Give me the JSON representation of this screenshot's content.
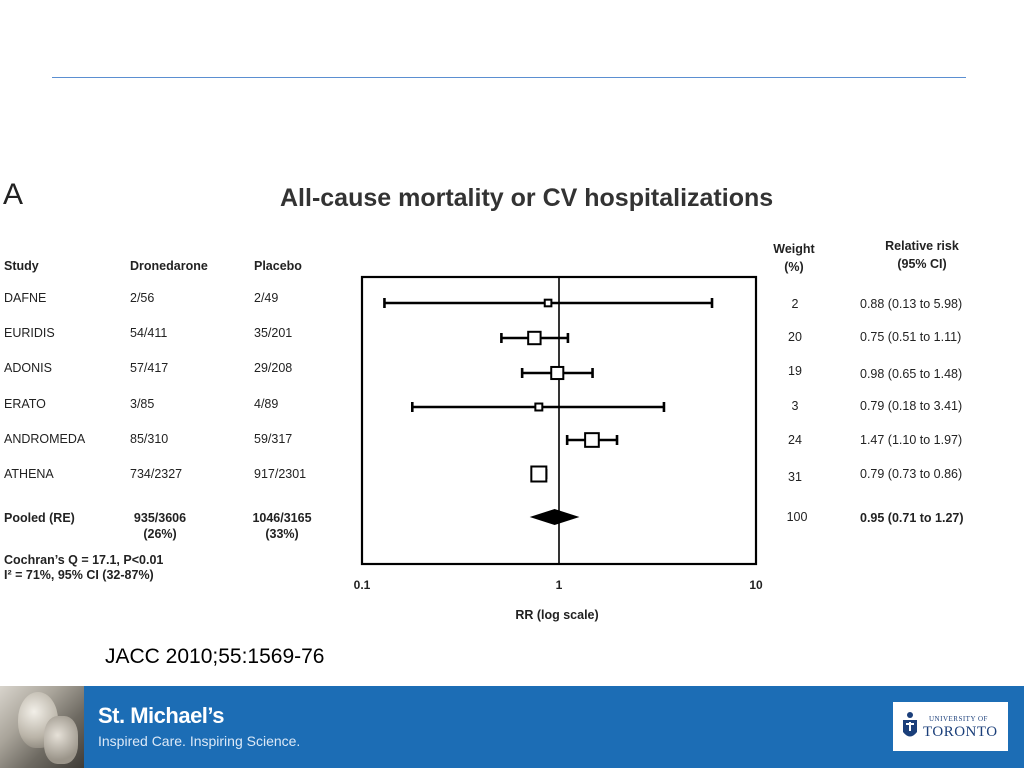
{
  "panel_letter": "A",
  "headers": {
    "study": "Study",
    "drug": "Dronedarone",
    "placebo": "Placebo",
    "weight_line1": "Weight",
    "weight_line2": "(%)",
    "rr_line1": "Relative risk",
    "rr_line2": "(95% CI)"
  },
  "rows": [
    {
      "study": "DAFNE",
      "drug": "2/56",
      "placebo": "2/49",
      "weight": "2",
      "rr_text": "0.88 (0.13  to  5.98)"
    },
    {
      "study": "EURIDIS",
      "drug": "54/411",
      "placebo": "35/201",
      "weight": "20",
      "rr_text": "0.75 (0.51  to  1.11)"
    },
    {
      "study": "ADONIS",
      "drug": "57/417",
      "placebo": "29/208",
      "weight": "19",
      "rr_text": "0.98 (0.65  to  1.48)"
    },
    {
      "study": "ERATO",
      "drug": "3/85",
      "placebo": "4/89",
      "weight": "3",
      "rr_text": "0.79 (0.18  to  3.41)"
    },
    {
      "study": "ANDROMEDA",
      "drug": "85/310",
      "placebo": "59/317",
      "weight": "24",
      "rr_text": "1.47 (1.10  to  1.97)"
    },
    {
      "study": "ATHENA",
      "drug": "734/2327",
      "placebo": "917/2301",
      "weight": "31",
      "rr_text": "0.79 (0.73  to  0.86)"
    }
  ],
  "pooled": {
    "label": "Pooled (RE)",
    "drug": "935/3606",
    "drug_pct": "(26%)",
    "placebo": "1046/3165",
    "placebo_pct": "(33%)",
    "weight": "100",
    "rr_text": "0.95 (0.71 to 1.27)"
  },
  "stats": {
    "line1": "Cochran’s Q = 17.1, P<0.01",
    "line2": "I² = 71%, 95% CI (32-87%)"
  },
  "citation": "JACC 2010;55:1569-76",
  "footer": {
    "brand": "St. Michael’s",
    "tagline": "Inspired Care. Inspiring Science.",
    "uoft_small": "UNIVERSITY OF",
    "uoft_big": "TORONTO"
  },
  "colors": {
    "footer_bg": "#1c6db5",
    "rule": "#5b8fd1",
    "marks": "#000000"
  },
  "chart_data": {
    "type": "forest",
    "title": "All-cause mortality or CV hospitalizations",
    "xlabel": "RR (log scale)",
    "x_scale": "log",
    "xlim": [
      0.1,
      10
    ],
    "x_ticks": [
      "0.1",
      "1",
      "10"
    ],
    "reference_line": 1,
    "studies": [
      {
        "name": "DAFNE",
        "rr": 0.88,
        "lower": 0.13,
        "upper": 5.98,
        "weight": 2
      },
      {
        "name": "EURIDIS",
        "rr": 0.75,
        "lower": 0.51,
        "upper": 1.11,
        "weight": 20
      },
      {
        "name": "ADONIS",
        "rr": 0.98,
        "lower": 0.65,
        "upper": 1.48,
        "weight": 19
      },
      {
        "name": "ERATO",
        "rr": 0.79,
        "lower": 0.18,
        "upper": 3.41,
        "weight": 3
      },
      {
        "name": "ANDROMEDA",
        "rr": 1.47,
        "lower": 1.1,
        "upper": 1.97,
        "weight": 24
      },
      {
        "name": "ATHENA",
        "rr": 0.79,
        "lower": 0.73,
        "upper": 0.86,
        "weight": 31
      }
    ],
    "pooled": {
      "name": "Pooled (RE)",
      "rr": 0.95,
      "lower": 0.71,
      "upper": 1.27,
      "weight": 100
    }
  }
}
